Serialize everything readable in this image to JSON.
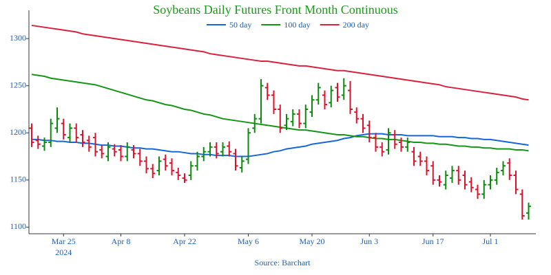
{
  "chart_data": {
    "type": "ohlc",
    "title": "Soybeans Daily Futures Front Month Continuous",
    "source": "Source: Barchart",
    "x_sublabel": "2024",
    "categories": [
      null,
      null,
      null,
      null,
      null,
      "Mar 25",
      null,
      null,
      null,
      null,
      null,
      null,
      null,
      null,
      "Apr 8",
      null,
      null,
      null,
      null,
      null,
      null,
      null,
      null,
      null,
      "Apr 22",
      null,
      null,
      null,
      null,
      null,
      null,
      null,
      null,
      null,
      "May 6",
      null,
      null,
      null,
      null,
      null,
      null,
      null,
      null,
      null,
      "May 20",
      null,
      null,
      null,
      null,
      null,
      null,
      null,
      null,
      "Jun 3",
      null,
      null,
      null,
      null,
      null,
      null,
      null,
      null,
      null,
      "Jun 17",
      null,
      null,
      null,
      null,
      null,
      null,
      null,
      null,
      "Jul 1",
      null,
      null,
      null,
      null,
      null,
      null
    ],
    "ohlc": {
      "open": [
        1205,
        1192,
        1186,
        1190,
        1205,
        1210,
        1195,
        1205,
        1198,
        1192,
        1195,
        1182,
        1175,
        1183,
        1182,
        1175,
        1182,
        1178,
        1170,
        1162,
        1160,
        1172,
        1168,
        1158,
        1152,
        1155,
        1165,
        1175,
        1180,
        1185,
        1180,
        1186,
        1178,
        1163,
        1172,
        1205,
        1215,
        1248,
        1240,
        1225,
        1208,
        1212,
        1220,
        1210,
        1222,
        1235,
        1240,
        1232,
        1248,
        1240,
        1245,
        1222,
        1215,
        1208,
        1195,
        1185,
        1182,
        1198,
        1190,
        1185,
        1180,
        1175,
        1170,
        1165,
        1150,
        1145,
        1152,
        1160,
        1155,
        1148,
        1140,
        1135,
        1145,
        1150,
        1160,
        1168,
        1155,
        1135,
        1115
      ],
      "high": [
        1210,
        1197,
        1195,
        1215,
        1227,
        1215,
        1210,
        1210,
        1203,
        1197,
        1200,
        1187,
        1190,
        1188,
        1187,
        1190,
        1187,
        1183,
        1175,
        1167,
        1175,
        1177,
        1173,
        1163,
        1157,
        1170,
        1180,
        1185,
        1190,
        1190,
        1190,
        1191,
        1183,
        1175,
        1205,
        1220,
        1257,
        1253,
        1245,
        1230,
        1220,
        1225,
        1225,
        1230,
        1240,
        1253,
        1245,
        1250,
        1253,
        1258,
        1255,
        1227,
        1220,
        1213,
        1200,
        1190,
        1205,
        1203,
        1195,
        1195,
        1185,
        1180,
        1175,
        1170,
        1155,
        1160,
        1165,
        1165,
        1160,
        1153,
        1145,
        1150,
        1155,
        1163,
        1170,
        1173,
        1160,
        1140,
        1126
      ],
      "low": [
        1185,
        1183,
        1181,
        1185,
        1200,
        1193,
        1190,
        1190,
        1185,
        1180,
        1175,
        1173,
        1170,
        1175,
        1170,
        1170,
        1173,
        1165,
        1157,
        1152,
        1155,
        1160,
        1155,
        1150,
        1147,
        1150,
        1160,
        1170,
        1175,
        1173,
        1175,
        1175,
        1160,
        1158,
        1167,
        1200,
        1210,
        1235,
        1220,
        1200,
        1203,
        1207,
        1205,
        1205,
        1217,
        1230,
        1225,
        1227,
        1233,
        1235,
        1220,
        1210,
        1200,
        1190,
        1180,
        1175,
        1177,
        1183,
        1180,
        1180,
        1165,
        1165,
        1155,
        1145,
        1143,
        1140,
        1147,
        1145,
        1140,
        1137,
        1130,
        1130,
        1140,
        1145,
        1155,
        1150,
        1135,
        1108,
        1108
      ],
      "close": [
        1190,
        1188,
        1190,
        1210,
        1215,
        1198,
        1205,
        1195,
        1190,
        1185,
        1180,
        1178,
        1185,
        1180,
        1175,
        1185,
        1178,
        1170,
        1162,
        1157,
        1170,
        1165,
        1160,
        1155,
        1150,
        1165,
        1175,
        1180,
        1185,
        1178,
        1185,
        1180,
        1165,
        1170,
        1200,
        1215,
        1250,
        1240,
        1225,
        1205,
        1215,
        1220,
        1210,
        1225,
        1235,
        1248,
        1230,
        1245,
        1238,
        1250,
        1225,
        1215,
        1205,
        1195,
        1185,
        1180,
        1200,
        1188,
        1185,
        1190,
        1170,
        1170,
        1160,
        1150,
        1148,
        1155,
        1160,
        1150,
        1145,
        1142,
        1135,
        1145,
        1150,
        1158,
        1165,
        1155,
        1140,
        1112,
        1122
      ]
    },
    "up_color": "#0a8a0a",
    "down_color": "#e0102a",
    "series": [
      {
        "name": "50 day",
        "color": "#1565d8",
        "values": [
          1193,
          1193,
          1192,
          1192,
          1191,
          1191,
          1190,
          1190,
          1189,
          1189,
          1188,
          1187,
          1187,
          1186,
          1186,
          1185,
          1184,
          1184,
          1183,
          1183,
          1182,
          1181,
          1180,
          1180,
          1179,
          1178,
          1178,
          1177,
          1177,
          1176,
          1176,
          1176,
          1175,
          1175,
          1175,
          1176,
          1177,
          1178,
          1180,
          1181,
          1183,
          1184,
          1185,
          1186,
          1188,
          1189,
          1190,
          1191,
          1192,
          1194,
          1195,
          1197,
          1198,
          1199,
          1199,
          1199,
          1198,
          1198,
          1198,
          1197,
          1197,
          1197,
          1197,
          1197,
          1196,
          1196,
          1196,
          1195,
          1195,
          1194,
          1194,
          1193,
          1193,
          1192,
          1191,
          1190,
          1189,
          1188,
          1187
        ]
      },
      {
        "name": "100 day",
        "color": "#149414",
        "values": [
          1262,
          1261,
          1260,
          1258,
          1257,
          1256,
          1255,
          1254,
          1253,
          1252,
          1251,
          1249,
          1247,
          1245,
          1243,
          1241,
          1239,
          1237,
          1235,
          1234,
          1232,
          1230,
          1229,
          1227,
          1225,
          1224,
          1222,
          1220,
          1219,
          1217,
          1215,
          1214,
          1213,
          1212,
          1211,
          1210,
          1209,
          1208,
          1207,
          1206,
          1205,
          1204,
          1203,
          1203,
          1202,
          1201,
          1200,
          1199,
          1198,
          1198,
          1197,
          1196,
          1196,
          1195,
          1194,
          1194,
          1193,
          1193,
          1192,
          1191,
          1190,
          1190,
          1189,
          1189,
          1188,
          1188,
          1187,
          1186,
          1186,
          1185,
          1185,
          1184,
          1184,
          1183,
          1183,
          1183,
          1182,
          1182,
          1181
        ]
      },
      {
        "name": "200 day",
        "color": "#d8203c",
        "values": [
          1314,
          1313,
          1312,
          1311,
          1310,
          1309,
          1308,
          1307,
          1305,
          1304,
          1303,
          1302,
          1301,
          1300,
          1299,
          1298,
          1297,
          1296,
          1295,
          1294,
          1293,
          1292,
          1291,
          1290,
          1289,
          1288,
          1287,
          1286,
          1284,
          1283,
          1282,
          1281,
          1280,
          1279,
          1278,
          1277,
          1276,
          1276,
          1275,
          1274,
          1273,
          1272,
          1271,
          1271,
          1270,
          1269,
          1268,
          1267,
          1266,
          1266,
          1265,
          1264,
          1263,
          1262,
          1261,
          1260,
          1259,
          1258,
          1257,
          1256,
          1255,
          1254,
          1253,
          1252,
          1251,
          1249,
          1248,
          1247,
          1246,
          1245,
          1244,
          1243,
          1242,
          1241,
          1240,
          1239,
          1238,
          1236,
          1235
        ]
      }
    ],
    "ylim": [
      1093,
      1330
    ],
    "yticks": [
      1100,
      1150,
      1200,
      1250,
      1300
    ],
    "grid": false,
    "title_color": "#1a9a1a",
    "axis_label_color": "#1a5fb4"
  }
}
